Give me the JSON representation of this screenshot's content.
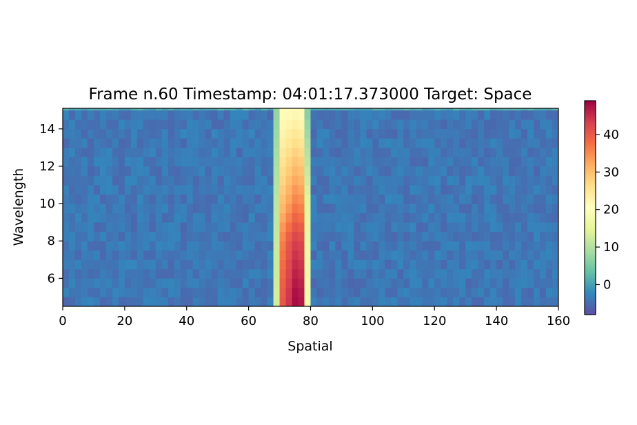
{
  "chart_data": {
    "type": "heatmap",
    "title": "Frame n.60 Timestamp: 04:01:17.373000 Target: Space",
    "xlabel": "Spatial",
    "ylabel": "Wavelength",
    "xlim": [
      0,
      160
    ],
    "ylim": [
      4.5,
      15.1
    ],
    "x_ticks": [
      0,
      20,
      40,
      60,
      80,
      100,
      120,
      140,
      160
    ],
    "y_ticks": [
      6,
      8,
      10,
      12,
      14
    ],
    "colorbar": {
      "colormap": "Spectral_r",
      "range": [
        -8,
        49
      ],
      "ticks": [
        0,
        10,
        20,
        30,
        40
      ]
    },
    "grid": false,
    "background_level": -4,
    "top_row_level": 1,
    "columns": [
      {
        "x": 68,
        "values_by_wavelength": [
          [
            5,
            13
          ],
          [
            10,
            11
          ],
          [
            15,
            7
          ]
        ]
      },
      {
        "x": 70,
        "values_by_wavelength": [
          [
            5,
            40
          ],
          [
            8,
            36
          ],
          [
            10,
            30
          ],
          [
            12,
            26
          ],
          [
            14,
            22
          ],
          [
            15,
            21
          ]
        ]
      },
      {
        "x": 72,
        "values_by_wavelength": [
          [
            5,
            44
          ],
          [
            8,
            40
          ],
          [
            10,
            33
          ],
          [
            12,
            28
          ],
          [
            14,
            23
          ],
          [
            15,
            21
          ]
        ]
      },
      {
        "x": 74,
        "values_by_wavelength": [
          [
            5,
            48
          ],
          [
            8,
            43
          ],
          [
            10,
            36
          ],
          [
            12,
            30
          ],
          [
            14,
            24
          ],
          [
            15,
            21
          ]
        ]
      },
      {
        "x": 76,
        "values_by_wavelength": [
          [
            5,
            47
          ],
          [
            8,
            42
          ],
          [
            10,
            35
          ],
          [
            12,
            29
          ],
          [
            14,
            23
          ],
          [
            15,
            21
          ]
        ]
      },
      {
        "x": 78,
        "values_by_wavelength": [
          [
            5,
            18
          ],
          [
            10,
            15
          ],
          [
            15,
            6
          ]
        ]
      }
    ]
  }
}
